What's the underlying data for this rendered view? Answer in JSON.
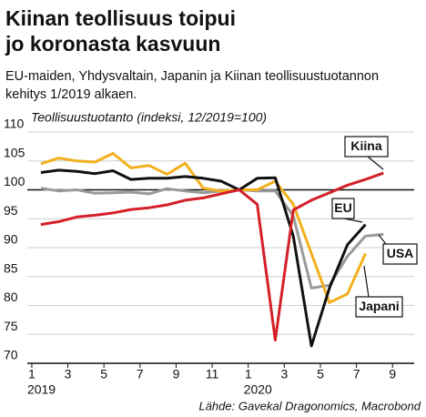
{
  "chart_data": {
    "type": "line",
    "title": [
      "Kiinan teollisuus toipui",
      "jo koronasta kasvuun"
    ],
    "subtitle": [
      "EU-maiden, Yhdysvaltain, Japanin ja Kiinan teollisuustuotannon",
      "kehitys 1/2019 alkaen."
    ],
    "y_label": "Teollisuustuotanto (indeksi, 12/2019=100)",
    "source": "Lähde: Gavekal Dragonomics, Macrobond",
    "x": [
      1.5,
      2.5,
      3.5,
      4.5,
      5.5,
      6.5,
      7.5,
      8.5,
      9.5,
      10.5,
      11.5,
      12.5,
      13.5,
      14.5,
      15.5,
      16.5,
      17.5,
      18.5,
      19.5,
      20.5
    ],
    "series": [
      {
        "name": "Kiina",
        "color": "#d42027",
        "values": [
          94,
          94.5,
          95.3,
          95.6,
          96,
          96.6,
          96.9,
          97.4,
          98.2,
          98.6,
          99.3,
          100,
          97.5,
          74,
          96.5,
          98.2,
          99.5,
          100.8,
          101.8,
          102.9
        ]
      },
      {
        "name": "EU",
        "color": "#111111",
        "values": [
          103,
          103.4,
          103.2,
          102.8,
          103.3,
          101.8,
          102,
          102,
          102.3,
          102,
          101.5,
          100,
          102,
          102.1,
          92,
          73,
          83,
          90.5,
          94,
          null
        ]
      },
      {
        "name": "USA",
        "color": "#9a9a9a",
        "values": [
          100.3,
          99.8,
          100,
          99.4,
          99.5,
          99.6,
          99.3,
          100.2,
          99.8,
          99.5,
          99.8,
          100,
          99.8,
          99.8,
          95.5,
          83,
          83.5,
          88.5,
          92,
          92.3
        ]
      },
      {
        "name": "Japani",
        "color": "#f2b01e",
        "values": [
          104.5,
          105.5,
          105,
          104.8,
          106.3,
          103.8,
          104.2,
          102.7,
          104.6,
          100.3,
          99.8,
          100,
          100,
          101.5,
          97.5,
          89,
          80.5,
          82,
          89,
          null
        ]
      }
    ],
    "xlim": [
      0.75,
      22.2
    ],
    "xticks": [
      1,
      3,
      5,
      7,
      9,
      11,
      {
        "value": 13,
        "label": "1"
      },
      {
        "value": 15,
        "label": "3"
      },
      {
        "value": 17,
        "label": "5"
      },
      {
        "value": 19,
        "label": "7"
      },
      {
        "value": 21,
        "label": "9"
      }
    ],
    "x_year_labels": [
      {
        "value": 1,
        "label": "2019"
      },
      {
        "value": 13,
        "label": "2020"
      }
    ],
    "ylim": [
      70,
      110
    ],
    "yticks": [
      70,
      75,
      80,
      85,
      90,
      95,
      100,
      105,
      110
    ],
    "reference_line": 100,
    "grid": true
  }
}
